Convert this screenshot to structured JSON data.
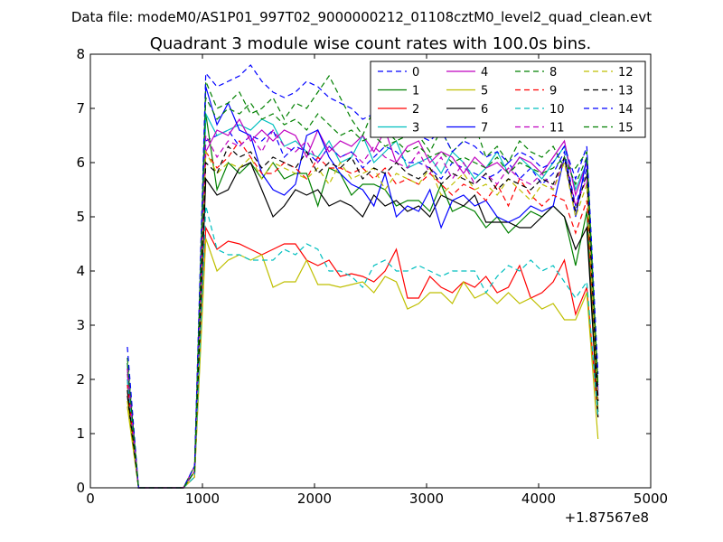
{
  "header": {
    "datafile": "Data file: modeM0/AS1P01_997T02_9000000212_01108cztM0_level2_quad_clean.evt",
    "title": "Quadrant 3 module wise count rates with 100.0s bins."
  },
  "chart_data": {
    "type": "line",
    "title": "Quadrant 3 module wise count rates with 100.0s bins.",
    "xlabel": "",
    "ylabel": "",
    "xlim": [
      0,
      5000
    ],
    "ylim": [
      0,
      8
    ],
    "x_offset_label": "+1.87567e8",
    "xticks": [
      "0",
      "1000",
      "2000",
      "3000",
      "4000",
      "5000"
    ],
    "yticks": [
      "0",
      "1",
      "2",
      "3",
      "4",
      "5",
      "6",
      "7",
      "8"
    ],
    "grid": false,
    "legend_position": "top-right",
    "legend_columns": 4,
    "x": [
      330,
      430,
      530,
      630,
      730,
      830,
      930,
      1030,
      1130,
      1230,
      1330,
      1430,
      1530,
      1630,
      1730,
      1830,
      1930,
      2030,
      2130,
      2230,
      2330,
      2430,
      2530,
      2630,
      2730,
      2830,
      2930,
      3030,
      3130,
      3230,
      3330,
      3430,
      3530,
      3630,
      3730,
      3830,
      3930,
      4030,
      4130,
      4230,
      4330,
      4430,
      4530
    ],
    "series": [
      {
        "name": "0",
        "color": "#0000ff",
        "style": "dashed",
        "values": [
          2.2,
          0,
          0,
          0,
          0,
          0,
          0.3,
          6.4,
          6.5,
          6.6,
          6.3,
          6.5,
          6.4,
          6.6,
          6.1,
          6.3,
          6.2,
          6.0,
          6.3,
          6.1,
          6.2,
          5.9,
          6.1,
          6.3,
          6.2,
          6.0,
          6.0,
          5.9,
          5.7,
          6.0,
          5.9,
          5.8,
          5.7,
          5.8,
          6.0,
          5.7,
          5.9,
          5.6,
          5.8,
          6.2,
          5.2,
          5.9,
          1.6
        ]
      },
      {
        "name": "1",
        "color": "#008000",
        "style": "solid",
        "values": [
          2.0,
          0,
          0,
          0,
          0,
          0,
          0.3,
          6.9,
          5.5,
          6.0,
          5.8,
          6.0,
          5.7,
          6.0,
          5.7,
          5.8,
          5.8,
          5.2,
          5.9,
          5.8,
          5.4,
          5.6,
          5.6,
          5.5,
          5.2,
          5.3,
          5.3,
          5.1,
          5.6,
          5.1,
          5.2,
          5.1,
          4.8,
          5.0,
          4.7,
          4.9,
          5.1,
          5.0,
          5.2,
          5.0,
          4.1,
          5.1,
          1.4
        ]
      },
      {
        "name": "2",
        "color": "#ff0000",
        "style": "solid",
        "values": [
          1.8,
          0,
          0,
          0,
          0,
          0,
          0.2,
          4.8,
          4.4,
          4.55,
          4.5,
          4.4,
          4.3,
          4.4,
          4.5,
          4.5,
          4.2,
          4.1,
          4.2,
          3.9,
          3.95,
          3.9,
          3.8,
          4.0,
          4.4,
          3.5,
          3.5,
          3.9,
          3.7,
          3.6,
          3.8,
          3.7,
          3.9,
          3.6,
          3.7,
          4.1,
          3.5,
          3.6,
          3.8,
          4.2,
          3.2,
          3.7,
          1.3
        ]
      },
      {
        "name": "3",
        "color": "#00bfbf",
        "style": "solid",
        "values": [
          1.9,
          0,
          0,
          0,
          0,
          0,
          0.3,
          6.9,
          6.5,
          6.6,
          6.7,
          6.6,
          6.8,
          6.7,
          6.3,
          6.4,
          6.2,
          6.1,
          6.4,
          6.0,
          6.1,
          6.5,
          6.0,
          6.2,
          6.4,
          5.9,
          6.0,
          6.1,
          5.8,
          6.2,
          6.0,
          5.7,
          5.9,
          6.2,
          5.8,
          6.1,
          5.9,
          5.7,
          6.0,
          6.3,
          5.5,
          6.0,
          1.7
        ]
      },
      {
        "name": "4",
        "color": "#bf00bf",
        "style": "solid",
        "values": [
          2.1,
          0,
          0,
          0,
          0,
          0,
          0.4,
          6.2,
          6.6,
          6.5,
          6.8,
          6.4,
          6.6,
          6.4,
          6.6,
          6.5,
          6.1,
          6.6,
          6.2,
          6.4,
          6.3,
          6.5,
          6.2,
          6.6,
          6.0,
          6.3,
          6.4,
          6.0,
          6.2,
          6.1,
          5.8,
          6.1,
          5.9,
          6.0,
          5.8,
          6.1,
          6.0,
          5.8,
          6.1,
          6.4,
          5.4,
          6.0,
          1.7
        ]
      },
      {
        "name": "5",
        "color": "#bfbf00",
        "style": "solid",
        "values": [
          1.5,
          0,
          0,
          0,
          0,
          0,
          0.2,
          4.6,
          4.0,
          4.2,
          4.3,
          4.2,
          4.3,
          3.7,
          3.8,
          3.8,
          4.2,
          3.75,
          3.75,
          3.7,
          3.75,
          3.8,
          3.6,
          3.9,
          3.8,
          3.3,
          3.4,
          3.6,
          3.6,
          3.4,
          3.8,
          3.5,
          3.6,
          3.4,
          3.6,
          3.4,
          3.5,
          3.3,
          3.4,
          3.1,
          3.1,
          3.6,
          0.9
        ]
      },
      {
        "name": "6",
        "color": "#000000",
        "style": "solid",
        "values": [
          1.7,
          0,
          0,
          0,
          0,
          0,
          0.3,
          5.7,
          5.4,
          5.5,
          5.9,
          6.0,
          5.5,
          5.0,
          5.2,
          5.5,
          5.4,
          5.5,
          5.2,
          5.3,
          5.2,
          5.0,
          5.4,
          5.2,
          5.3,
          5.1,
          5.2,
          5.0,
          5.4,
          5.3,
          5.2,
          5.4,
          4.9,
          4.9,
          4.9,
          4.8,
          4.8,
          5.0,
          5.2,
          5.0,
          4.4,
          4.8,
          1.3
        ]
      },
      {
        "name": "7",
        "color": "#0000ff",
        "style": "solid",
        "values": [
          2.3,
          0,
          0,
          0,
          0,
          0,
          0.3,
          7.4,
          6.7,
          7.1,
          6.6,
          6.5,
          5.8,
          5.5,
          5.4,
          5.6,
          6.5,
          6.6,
          6.1,
          5.8,
          5.6,
          5.5,
          5.2,
          5.8,
          5.0,
          5.2,
          5.1,
          5.5,
          4.8,
          5.3,
          5.4,
          5.2,
          5.3,
          5.0,
          4.9,
          5.0,
          5.2,
          5.1,
          5.2,
          6.1,
          5.0,
          6.1,
          1.8
        ]
      },
      {
        "name": "8",
        "color": "#008000",
        "style": "dashed",
        "values": [
          2.4,
          0,
          0,
          0,
          0,
          0,
          0.4,
          7.5,
          7.0,
          7.1,
          7.3,
          6.9,
          7.0,
          7.2,
          6.8,
          7.1,
          7.0,
          7.3,
          7.6,
          7.2,
          6.8,
          6.5,
          7.0,
          6.6,
          6.4,
          6.5,
          6.5,
          6.2,
          6.6,
          6.2,
          6.4,
          6.7,
          6.1,
          6.3,
          6.0,
          6.4,
          6.2,
          6.1,
          6.3,
          5.9,
          5.9,
          6.2,
          1.9
        ]
      },
      {
        "name": "9",
        "color": "#ff0000",
        "style": "dashed",
        "values": [
          1.9,
          0,
          0,
          0,
          0,
          0,
          0.3,
          6.2,
          5.9,
          6.1,
          6.4,
          6.1,
          5.8,
          5.8,
          6.0,
          5.9,
          5.7,
          6.1,
          5.9,
          5.9,
          5.8,
          5.9,
          5.7,
          5.9,
          5.6,
          5.7,
          5.6,
          5.8,
          5.6,
          5.4,
          5.6,
          5.5,
          5.3,
          5.6,
          5.2,
          5.7,
          5.4,
          5.2,
          5.4,
          5.3,
          4.7,
          5.3,
          1.6
        ]
      },
      {
        "name": "10",
        "color": "#00bfbf",
        "style": "dashed",
        "values": [
          2.0,
          0,
          0,
          0,
          0,
          0,
          0.2,
          5.2,
          4.4,
          4.3,
          4.3,
          4.2,
          4.2,
          4.2,
          4.4,
          4.3,
          4.5,
          4.4,
          4.0,
          4.0,
          3.9,
          3.7,
          4.1,
          4.2,
          4.0,
          4.0,
          4.1,
          4.0,
          3.9,
          4.0,
          4.0,
          4.0,
          3.6,
          3.9,
          4.1,
          4.0,
          4.2,
          4.0,
          4.1,
          3.8,
          3.5,
          3.8,
          1.3
        ]
      },
      {
        "name": "11",
        "color": "#bf00bf",
        "style": "dashed",
        "values": [
          2.2,
          0,
          0,
          0,
          0,
          0,
          0.3,
          6.5,
          6.1,
          6.4,
          6.3,
          6.5,
          6.2,
          6.6,
          6.3,
          6.2,
          6.4,
          6.0,
          6.3,
          6.1,
          6.2,
          6.0,
          6.3,
          6.1,
          6.0,
          5.9,
          6.2,
          5.8,
          6.1,
          5.7,
          6.0,
          5.6,
          5.8,
          5.6,
          5.9,
          5.7,
          5.6,
          5.8,
          5.5,
          6.1,
          5.2,
          5.7,
          1.7
        ]
      },
      {
        "name": "12",
        "color": "#bfbf00",
        "style": "dashed",
        "values": [
          1.6,
          0,
          0,
          0,
          0,
          0,
          0.3,
          6.2,
          5.8,
          6.0,
          5.9,
          6.1,
          5.7,
          6.0,
          5.9,
          5.8,
          5.7,
          5.9,
          5.6,
          6.0,
          5.7,
          5.8,
          5.9,
          5.5,
          5.8,
          5.7,
          5.6,
          5.9,
          5.4,
          5.6,
          5.8,
          5.5,
          5.6,
          5.4,
          5.7,
          5.5,
          5.3,
          5.6,
          5.5,
          6.0,
          5.0,
          5.6,
          1.5
        ]
      },
      {
        "name": "13",
        "color": "#000000",
        "style": "dashed",
        "values": [
          1.8,
          0,
          0,
          0,
          0,
          0,
          0.3,
          6.0,
          5.8,
          6.3,
          6.1,
          6.2,
          5.9,
          6.1,
          6.0,
          5.9,
          6.2,
          5.8,
          6.0,
          5.9,
          6.1,
          5.7,
          5.9,
          5.8,
          6.0,
          5.8,
          5.7,
          5.9,
          5.6,
          5.8,
          5.7,
          5.6,
          5.8,
          5.5,
          5.7,
          5.6,
          5.5,
          5.7,
          5.6,
          6.1,
          5.1,
          5.8,
          1.6
        ]
      },
      {
        "name": "14",
        "color": "#0000ff",
        "style": "dashed",
        "values": [
          2.6,
          0,
          0,
          0,
          0,
          0,
          0.4,
          7.65,
          7.4,
          7.5,
          7.6,
          7.8,
          7.5,
          7.3,
          7.2,
          7.3,
          7.5,
          7.4,
          7.2,
          7.1,
          7.0,
          6.8,
          6.9,
          6.7,
          6.6,
          6.6,
          6.5,
          6.4,
          6.6,
          6.2,
          6.4,
          6.3,
          6.1,
          6.2,
          6.0,
          6.2,
          6.1,
          5.9,
          6.0,
          6.3,
          5.7,
          6.3,
          2.1
        ]
      },
      {
        "name": "15",
        "color": "#008000",
        "style": "dashed",
        "values": [
          2.3,
          0,
          0,
          0,
          0,
          0,
          0.3,
          7.2,
          6.8,
          7.0,
          6.9,
          7.1,
          6.8,
          6.9,
          6.7,
          6.8,
          6.6,
          6.9,
          6.7,
          6.5,
          6.6,
          6.4,
          6.5,
          6.3,
          6.4,
          6.2,
          6.3,
          6.1,
          6.2,
          6.0,
          6.1,
          6.0,
          5.9,
          6.1,
          5.8,
          6.0,
          5.9,
          5.8,
          5.9,
          6.1,
          5.6,
          6.1,
          1.9
        ]
      }
    ]
  }
}
